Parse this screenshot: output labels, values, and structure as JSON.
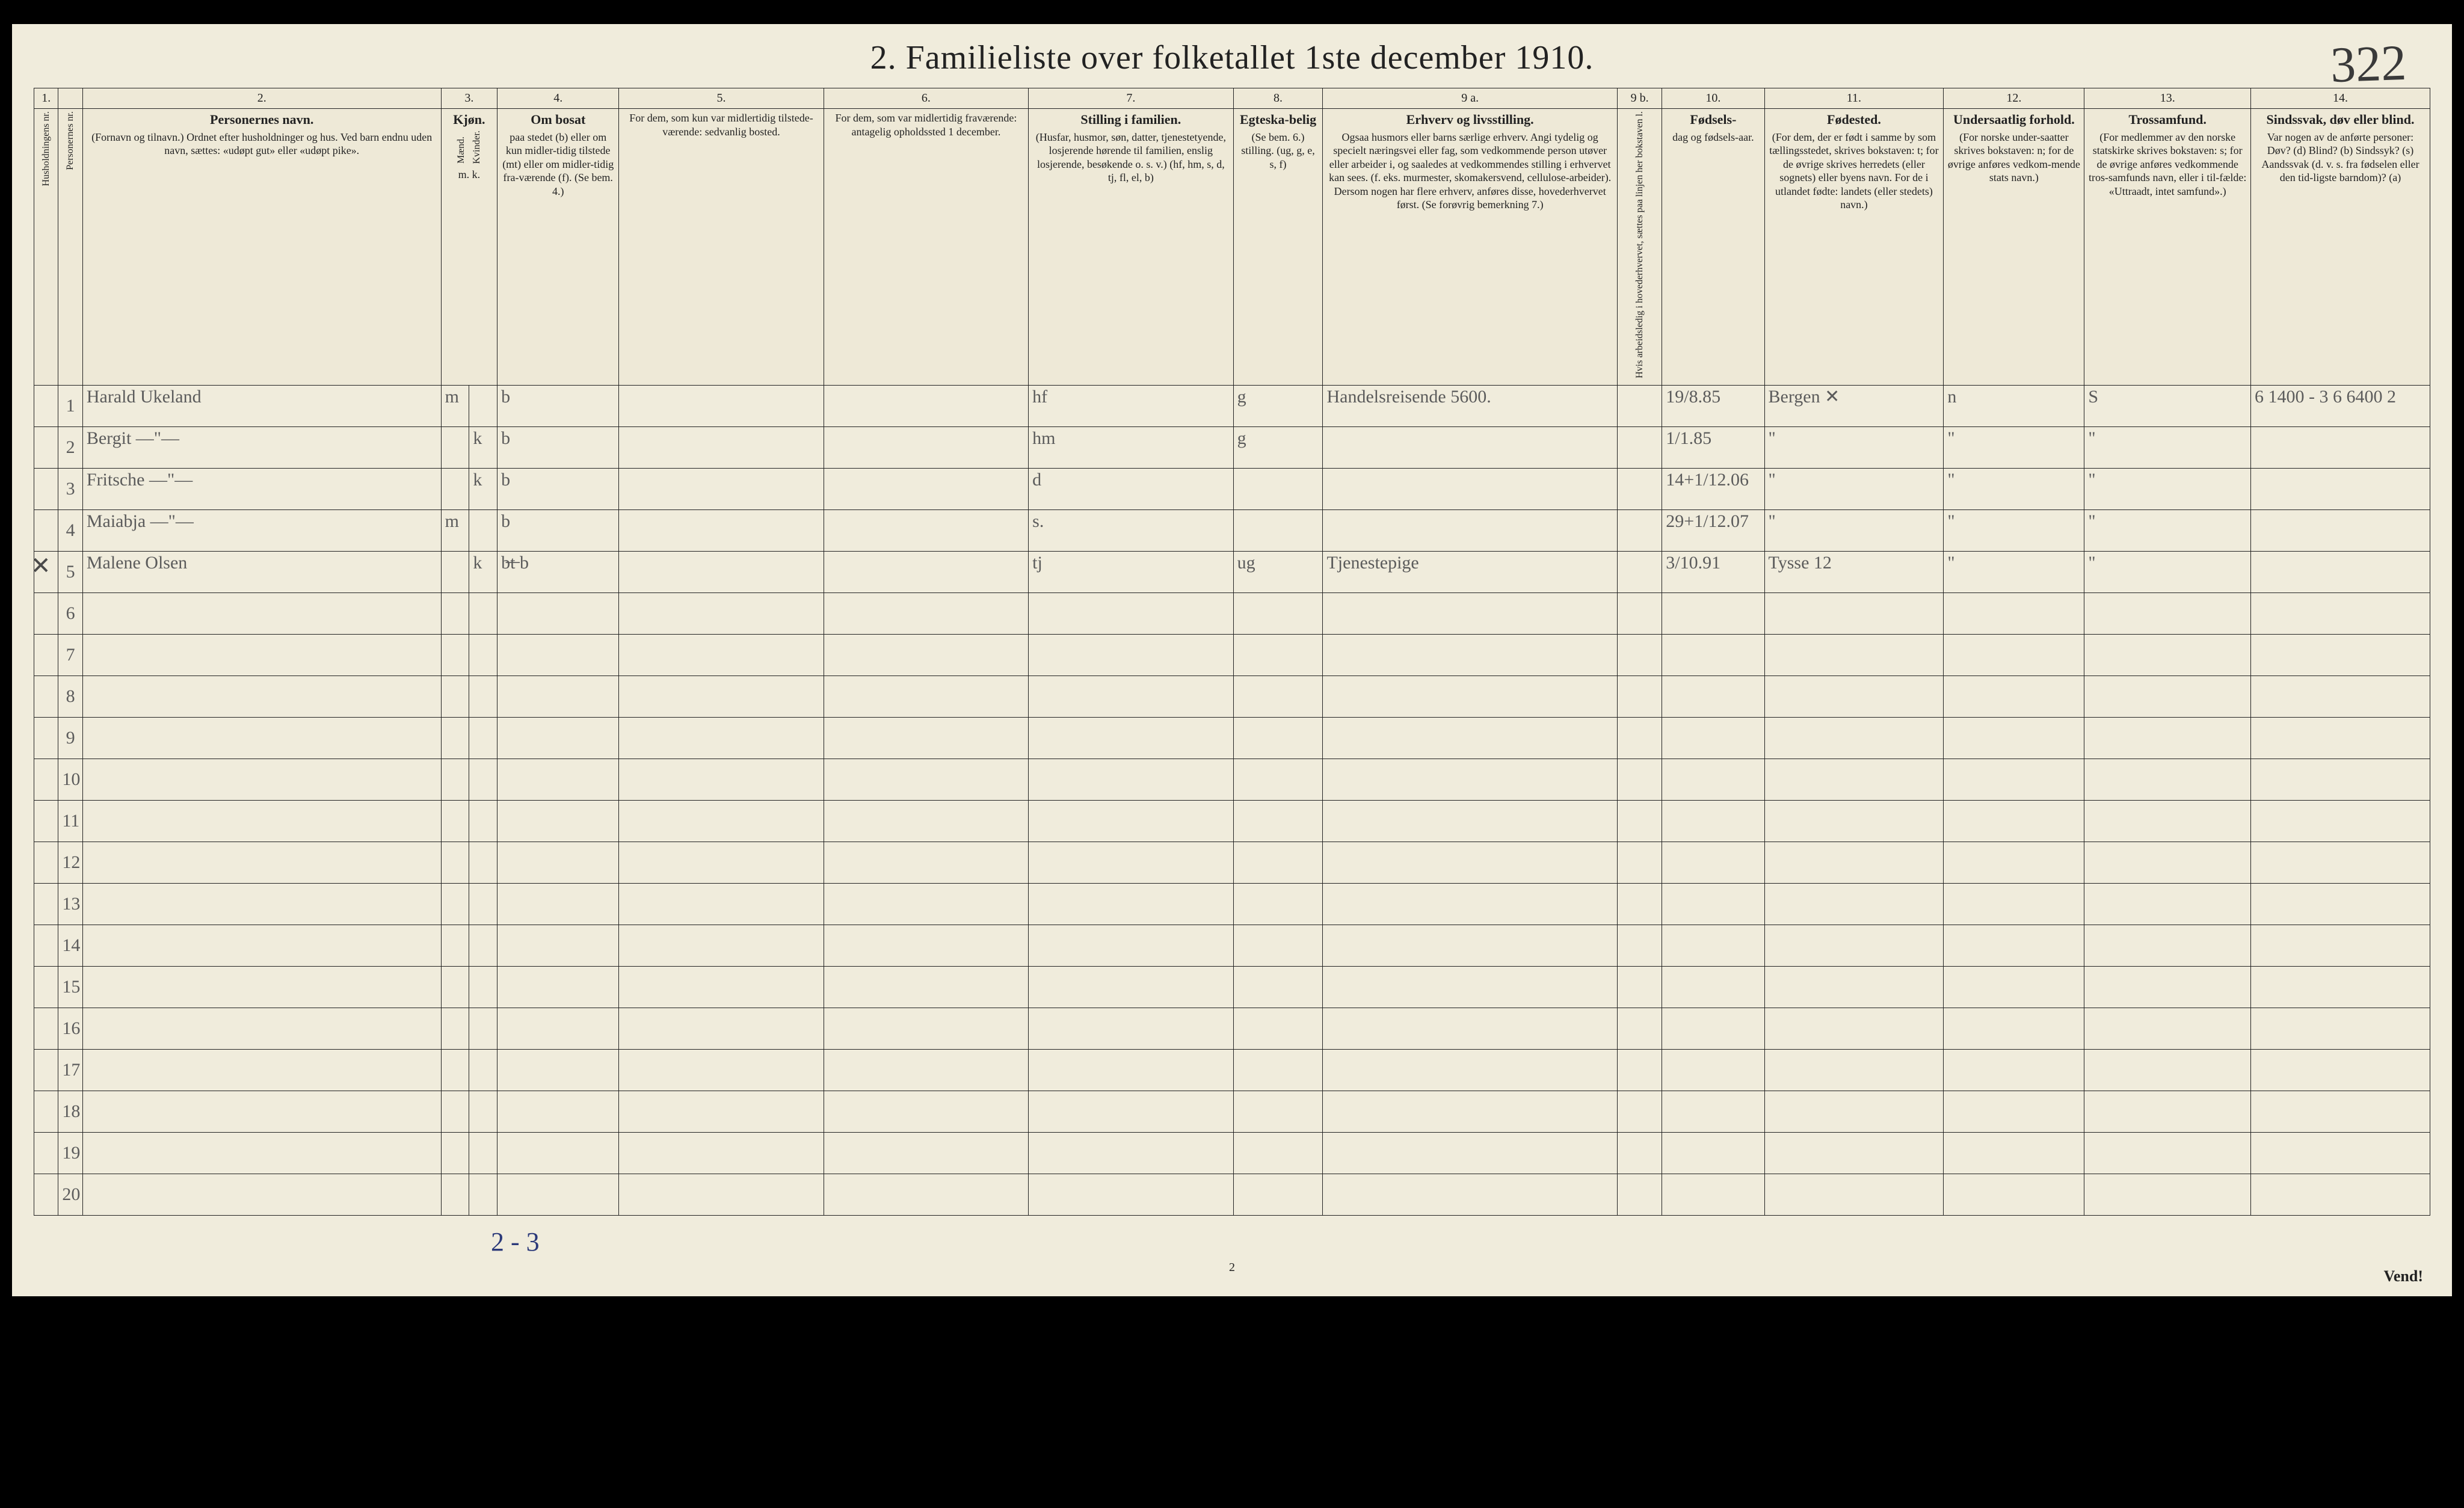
{
  "title": "2.  Familieliste over folketallet 1ste december 1910.",
  "page_number_handwritten": "322",
  "footer_handwritten": "2 - 3",
  "footer_printed_page": "2",
  "vend": "Vend!",
  "column_numbers": [
    "1.",
    "",
    "2.",
    "3.",
    "",
    "4.",
    "5.",
    "6.",
    "7.",
    "8.",
    "9 a.",
    "9 b.",
    "10.",
    "11.",
    "12.",
    "13.",
    "14."
  ],
  "headers": {
    "c1": {
      "vert": "Husholdningens nr."
    },
    "c1b": {
      "vert": "Personernes nr."
    },
    "c2": {
      "title": "Personernes navn.",
      "text": "(Fornavn og tilnavn.)\nOrdnet efter husholdninger og hus.\nVed barn endnu uden navn, sættes: «udøpt gut» eller «udøpt pike»."
    },
    "c3": {
      "title": "Kjøn.",
      "sub_m": "Mænd.",
      "sub_k": "Kvinder.",
      "foot": "m.  k."
    },
    "c4": {
      "title": "Om bosat",
      "text": "paa stedet (b) eller om kun midler-tidig tilstede (mt) eller om midler-tidig fra-værende (f). (Se bem. 4.)"
    },
    "c5": {
      "title": "",
      "text": "For dem, som kun var midlertidig tilstede-værende:\n\nsedvanlig bosted."
    },
    "c6": {
      "title": "",
      "text": "For dem, som var midlertidig fraværende:\n\nantagelig opholdssted 1 december."
    },
    "c7": {
      "title": "Stilling i familien.",
      "text": "(Husfar, husmor, søn, datter, tjenestetyende, losjerende hørende til familien, enslig losjerende, besøkende o. s. v.)\n(hf, hm, s, d, tj, fl, el, b)"
    },
    "c8": {
      "title": "Egteska-belig",
      "text": "(Se bem. 6.) stilling.\n(ug, g, e, s, f)"
    },
    "c9a": {
      "title": "Erhverv og livsstilling.",
      "text": "Ogsaa husmors eller barns særlige erhverv. Angi tydelig og specielt næringsvei eller fag, som vedkommende person utøver eller arbeider i, og saaledes at vedkommendes stilling i erhvervet kan sees. (f. eks. murmester, skomakersvend, cellulose-arbeider). Dersom nogen har flere erhverv, anføres disse, hovederhvervet først. (Se forøvrig bemerkning 7.)"
    },
    "c9b": {
      "vert": "Hvis arbeidsledig i hovederhvervet, sættes paa linjen her bokstaven l."
    },
    "c10": {
      "title": "Fødsels-",
      "text": "dag og fødsels-aar."
    },
    "c11": {
      "title": "Fødested.",
      "text": "(For dem, der er født i samme by som tællingsstedet, skrives bokstaven: t; for de øvrige skrives herredets (eller sognets) eller byens navn. For de i utlandet fødte: landets (eller stedets) navn.)"
    },
    "c12": {
      "title": "Undersaatlig forhold.",
      "text": "(For norske under-saatter skrives bokstaven: n; for de øvrige anføres vedkom-mende stats navn.)"
    },
    "c13": {
      "title": "Trossamfund.",
      "text": "(For medlemmer av den norske statskirke skrives bokstaven: s; for de øvrige anføres vedkommende tros-samfunds navn, eller i til-fælde: «Uttraadt, intet samfund».)"
    },
    "c14": {
      "title": "Sindssvak, døv eller blind.",
      "text": "Var nogen av de anførte personer:\nDøv?    (d)\nBlind?   (b)\nSindssyk? (s)\nAandssvak (d. v. s. fra fødselen eller den tid-ligste barndom)? (a)"
    }
  },
  "rows": [
    {
      "num": "1",
      "name": "Harald Ukeland",
      "sex_m": "m",
      "sex_k": "",
      "c4": "b",
      "c7": "hf",
      "c8": "g",
      "c9a": "Handelsreisende   5600.",
      "c10": "19/8.85",
      "c11": "Bergen  ✕",
      "c12": "n",
      "c13": "S",
      "c14": "6   1400 - 3\n6   6400  2"
    },
    {
      "num": "2",
      "name": "Bergit   —\"—",
      "sex_m": "",
      "sex_k": "k",
      "c4": "b",
      "c7": "hm",
      "c8": "g",
      "c9a": "",
      "c10": "1/1.85",
      "c11": "\"",
      "c12": "\"",
      "c13": "\"",
      "c14": ""
    },
    {
      "num": "3",
      "name": "Fritsche  —\"—",
      "sex_m": "",
      "sex_k": "k",
      "c4": "b",
      "c7": "d",
      "c8": "",
      "c9a": "",
      "c10": "14+1/12.06",
      "c11": "\"",
      "c12": "\"",
      "c13": "\"",
      "c14": ""
    },
    {
      "num": "4",
      "name": "Maiabja  —\"—",
      "sex_m": "m",
      "sex_k": "",
      "c4": "b",
      "c7": "s.",
      "c8": "",
      "c9a": "",
      "c10": "29+1/12.07",
      "c11": "\"",
      "c12": "\"",
      "c13": "\"",
      "c14": ""
    },
    {
      "num": "5",
      "name": "Malene Olsen",
      "sex_m": "",
      "sex_k": "k",
      "c4": "b̶t̶  b",
      "c7": "tj",
      "c8": "ug",
      "c9a": "Tjenestepige",
      "c10": "3/10.91",
      "c11": "Tysse 12",
      "c12": "\"",
      "c13": "\"",
      "c14": "",
      "xmark": true
    },
    {
      "num": "6"
    },
    {
      "num": "7"
    },
    {
      "num": "8"
    },
    {
      "num": "9"
    },
    {
      "num": "10"
    },
    {
      "num": "11"
    },
    {
      "num": "12"
    },
    {
      "num": "13"
    },
    {
      "num": "14"
    },
    {
      "num": "15"
    },
    {
      "num": "16"
    },
    {
      "num": "17"
    },
    {
      "num": "18"
    },
    {
      "num": "19"
    },
    {
      "num": "20"
    }
  ]
}
